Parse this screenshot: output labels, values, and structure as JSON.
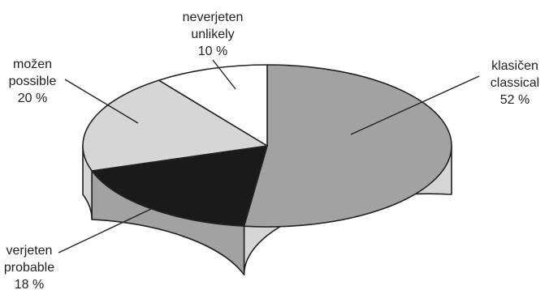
{
  "chart_data": {
    "type": "pie",
    "style": "3d",
    "title": "",
    "slices": [
      {
        "label_sl": "klasičen",
        "label_en": "classical",
        "value": 52,
        "value_label": "52 %",
        "color": "#a2a2a4",
        "side_color": "#d6d6d8"
      },
      {
        "label_sl": "verjeten",
        "label_en": "probable",
        "value": 18,
        "value_label": "18 %",
        "color": "#1a1a1a",
        "side_color": "#a2a2a4"
      },
      {
        "label_sl": "možen",
        "label_en": "possible",
        "value": 20,
        "value_label": "20 %",
        "color": "#d6d6d8",
        "side_color": "#d6d6d8"
      },
      {
        "label_sl": "neverjeten",
        "label_en": "unlikely",
        "value": 10,
        "value_label": "10 %",
        "color": "#ffffff",
        "side_color": "#ffffff"
      }
    ],
    "start_angle_deg": 90,
    "direction": "clockwise",
    "legend": "none"
  }
}
